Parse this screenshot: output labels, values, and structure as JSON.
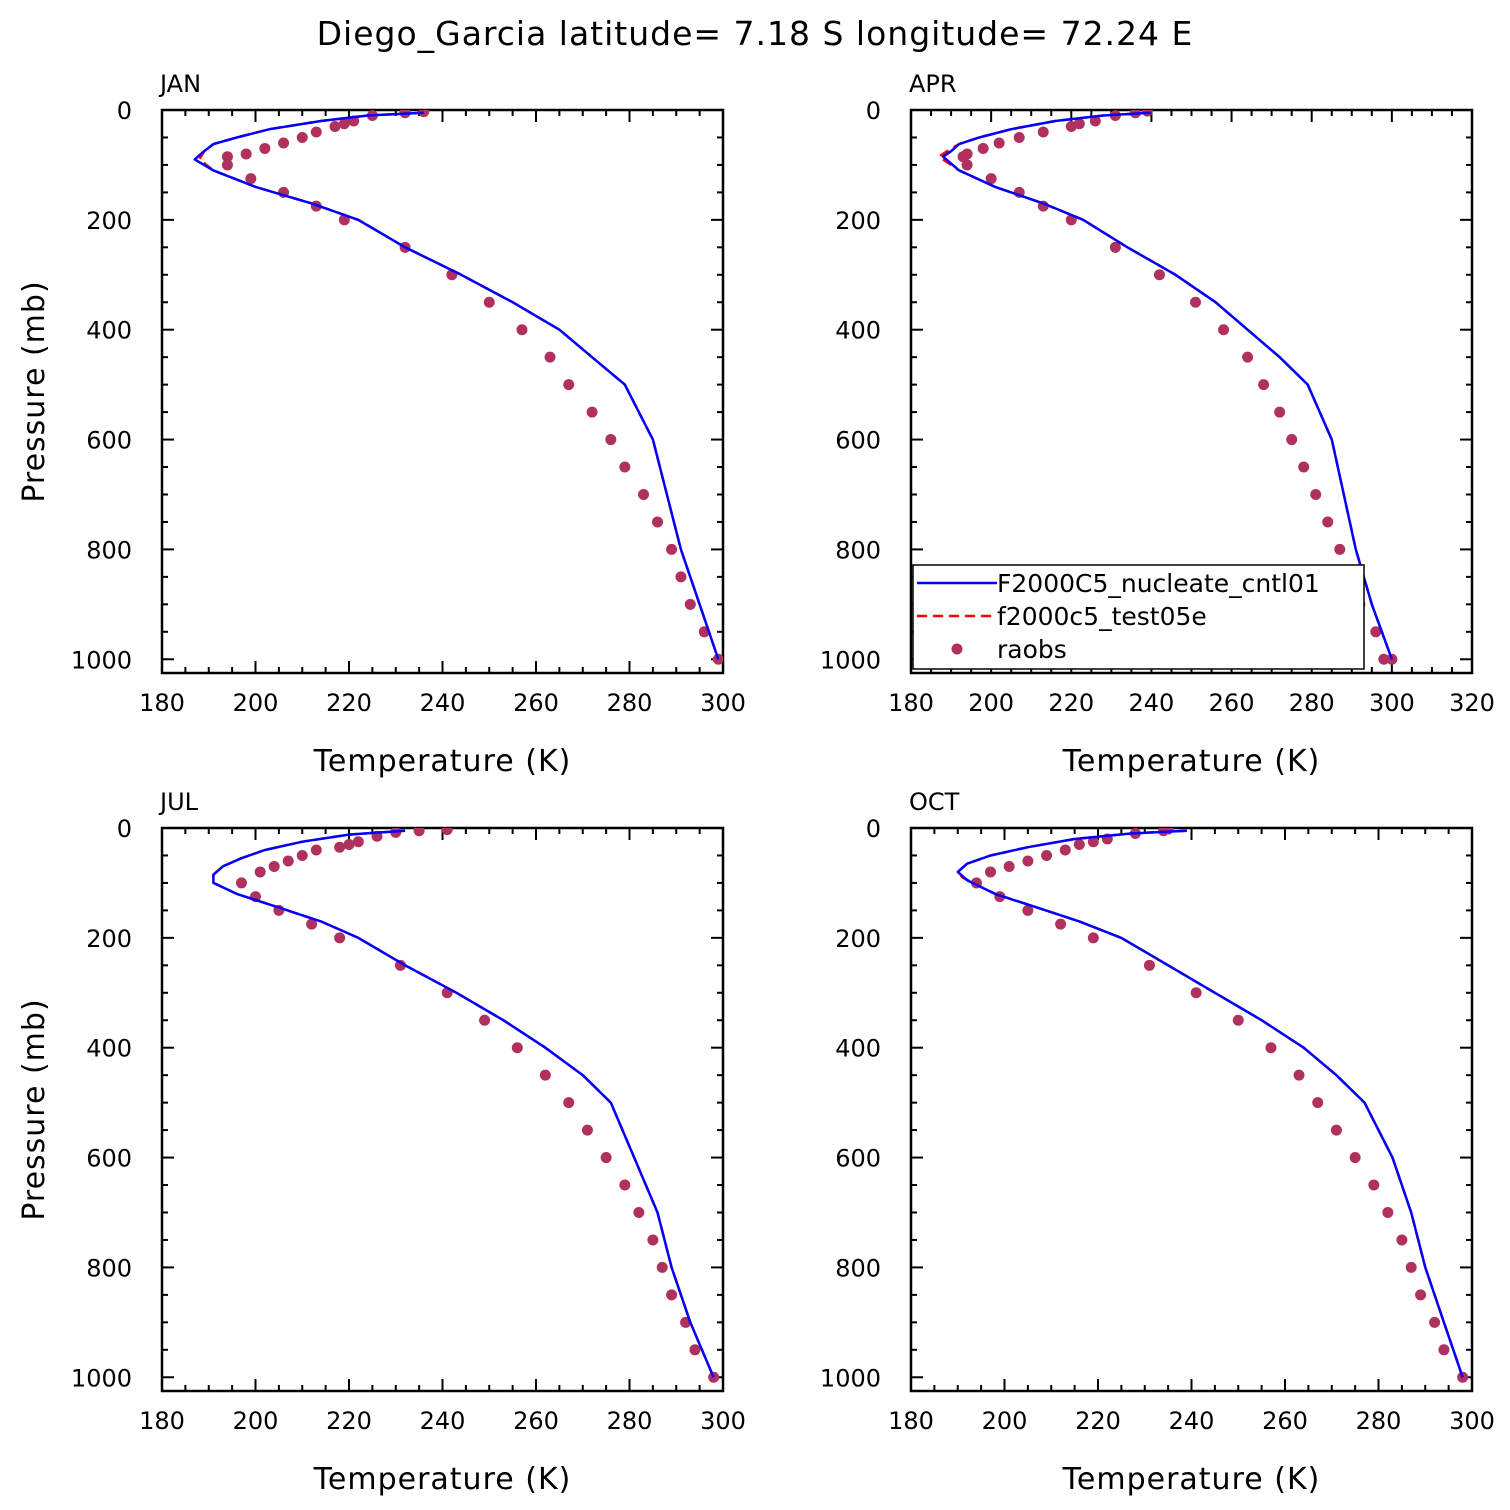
{
  "figure": {
    "title": "Diego_Garcia  latitude= 7.18 S longitude= 72.24 E"
  },
  "legend": {
    "placement": "lower-right of APR panel",
    "entries": [
      {
        "label": "F2000C5_nucleate_cntl01",
        "style": "solid-line",
        "color": "#0000ff"
      },
      {
        "label": "f2000c5_test05e",
        "style": "dashed-line",
        "color": "#ff0000"
      },
      {
        "label": "raobs",
        "style": "dots",
        "color": "#b03060"
      }
    ]
  },
  "chart_data": [
    {
      "type": "line",
      "title": "JAN",
      "xlabel": "Temperature (K)",
      "ylabel": "Pressure (mb)",
      "xlim": [
        180,
        300
      ],
      "ylim": [
        1025,
        0
      ],
      "xticks": [
        "180",
        "200",
        "220",
        "240",
        "260",
        "280",
        "300"
      ],
      "yticks": [
        "0",
        "200",
        "400",
        "600",
        "800",
        "1000"
      ],
      "series": [
        {
          "name": "F2000C5_nucleate_cntl01",
          "color": "#0000ff",
          "x": [
            236,
            224,
            214,
            203,
            196,
            191,
            189,
            187,
            191,
            200,
            212,
            222,
            232,
            244,
            255,
            265,
            272,
            279,
            285,
            288,
            291,
            295,
            299
          ],
          "y": [
            5,
            10,
            20,
            35,
            50,
            62,
            75,
            90,
            110,
            140,
            170,
            200,
            250,
            300,
            350,
            400,
            450,
            500,
            600,
            700,
            800,
            900,
            1000
          ]
        },
        {
          "name": "f2000c5_test05e",
          "color": "#ff0000",
          "x": [
            236,
            224,
            214,
            203,
            196,
            191,
            189,
            188,
            191,
            200,
            212,
            222,
            232,
            244,
            255,
            265,
            272,
            279,
            285,
            288,
            291,
            295,
            299
          ],
          "y": [
            5,
            10,
            20,
            35,
            50,
            62,
            75,
            90,
            110,
            140,
            170,
            200,
            250,
            300,
            350,
            400,
            450,
            500,
            600,
            700,
            800,
            900,
            1000
          ]
        },
        {
          "name": "raobs",
          "color": "#b03060",
          "x": [
            236,
            232,
            225,
            221,
            219,
            217,
            213,
            210,
            206,
            202,
            198,
            194,
            194,
            199,
            206,
            213,
            219,
            232,
            242,
            250,
            257,
            263,
            267,
            272,
            276,
            279,
            283,
            286,
            289,
            291,
            293,
            296,
            299
          ],
          "y": [
            3,
            5,
            10,
            20,
            25,
            30,
            40,
            50,
            60,
            70,
            80,
            85,
            100,
            125,
            150,
            175,
            200,
            250,
            300,
            350,
            400,
            450,
            500,
            550,
            600,
            650,
            700,
            750,
            800,
            850,
            900,
            950,
            1000
          ]
        }
      ]
    },
    {
      "type": "line",
      "title": "APR",
      "xlabel": "Temperature (K)",
      "ylabel": "",
      "xlim": [
        180,
        320
      ],
      "ylim": [
        1025,
        0
      ],
      "xticks": [
        "180",
        "200",
        "220",
        "240",
        "260",
        "280",
        "300",
        "320"
      ],
      "yticks": [
        "0",
        "200",
        "400",
        "600",
        "800",
        "1000"
      ],
      "series": [
        {
          "name": "F2000C5_nucleate_cntl01",
          "color": "#0000ff",
          "x": [
            240,
            228,
            216,
            205,
            197,
            192,
            190,
            188,
            192,
            201,
            213,
            223,
            234,
            246,
            256,
            264,
            272,
            279,
            285,
            288,
            291,
            295,
            300
          ],
          "y": [
            5,
            10,
            20,
            35,
            50,
            62,
            75,
            85,
            110,
            140,
            170,
            200,
            250,
            300,
            350,
            400,
            450,
            500,
            600,
            700,
            800,
            900,
            1000
          ]
        },
        {
          "name": "f2000c5_test05e",
          "color": "#ff0000",
          "x": [
            240,
            228,
            216,
            205,
            197,
            192,
            189,
            187,
            192,
            201,
            213,
            223,
            234,
            246,
            256,
            264,
            272,
            279,
            285,
            288,
            291,
            295,
            300
          ],
          "y": [
            5,
            10,
            20,
            35,
            50,
            62,
            75,
            85,
            110,
            140,
            170,
            200,
            250,
            300,
            350,
            400,
            450,
            500,
            600,
            700,
            800,
            900,
            1000
          ]
        },
        {
          "name": "raobs",
          "color": "#b03060",
          "x": [
            239,
            236,
            231,
            226,
            222,
            220,
            213,
            207,
            202,
            198,
            194,
            193,
            194,
            200,
            207,
            213,
            220,
            231,
            242,
            251,
            258,
            264,
            268,
            272,
            275,
            278,
            281,
            284,
            287,
            290,
            292,
            296,
            298,
            300
          ],
          "y": [
            2,
            5,
            10,
            20,
            25,
            30,
            40,
            50,
            60,
            70,
            80,
            85,
            100,
            125,
            150,
            175,
            200,
            250,
            300,
            350,
            400,
            450,
            500,
            550,
            600,
            650,
            700,
            750,
            800,
            850,
            900,
            950,
            1000,
            1000
          ]
        }
      ]
    },
    {
      "type": "line",
      "title": "JUL",
      "xlabel": "Temperature (K)",
      "ylabel": "Pressure (mb)",
      "xlim": [
        180,
        300
      ],
      "ylim": [
        1025,
        0
      ],
      "xticks": [
        "180",
        "200",
        "220",
        "240",
        "260",
        "280",
        "300"
      ],
      "yticks": [
        "0",
        "200",
        "400",
        "600",
        "800",
        "1000"
      ],
      "series": [
        {
          "name": "F2000C5_nucleate_cntl01",
          "color": "#0000ff",
          "x": [
            232,
            220,
            210,
            202,
            197,
            193,
            191,
            191,
            196,
            205,
            214,
            222,
            232,
            243,
            253,
            262,
            270,
            276,
            281,
            286,
            289,
            293,
            298
          ],
          "y": [
            5,
            12,
            25,
            40,
            55,
            70,
            85,
            100,
            120,
            145,
            170,
            200,
            250,
            300,
            350,
            400,
            450,
            500,
            600,
            700,
            800,
            900,
            1000
          ]
        },
        {
          "name": "f2000c5_test05e",
          "color": "#ff0000",
          "x": [
            232,
            220,
            210,
            202,
            197,
            193,
            191,
            191,
            196,
            205,
            214,
            222,
            232,
            243,
            253,
            262,
            270,
            276,
            281,
            286,
            289,
            293,
            298
          ],
          "y": [
            5,
            12,
            25,
            40,
            55,
            70,
            85,
            100,
            120,
            145,
            170,
            200,
            250,
            300,
            350,
            400,
            450,
            500,
            600,
            700,
            800,
            900,
            1000
          ]
        },
        {
          "name": "raobs",
          "color": "#b03060",
          "x": [
            241,
            235,
            230,
            226,
            222,
            220,
            218,
            213,
            210,
            207,
            204,
            201,
            197,
            200,
            205,
            212,
            218,
            231,
            241,
            249,
            256,
            262,
            267,
            271,
            275,
            279,
            282,
            285,
            287,
            289,
            292,
            294,
            298
          ],
          "y": [
            3,
            5,
            8,
            15,
            25,
            30,
            35,
            40,
            50,
            60,
            70,
            80,
            100,
            125,
            150,
            175,
            200,
            250,
            300,
            350,
            400,
            450,
            500,
            550,
            600,
            650,
            700,
            750,
            800,
            850,
            900,
            950,
            1000
          ]
        }
      ]
    },
    {
      "type": "line",
      "title": "OCT",
      "xlabel": "Temperature (K)",
      "ylabel": "",
      "xlim": [
        180,
        300
      ],
      "ylim": [
        1025,
        0
      ],
      "xticks": [
        "180",
        "200",
        "220",
        "240",
        "260",
        "280",
        "300"
      ],
      "yticks": [
        "0",
        "200",
        "400",
        "600",
        "800",
        "1000"
      ],
      "series": [
        {
          "name": "F2000C5_nucleate_cntl01",
          "color": "#0000ff",
          "x": [
            239,
            227,
            215,
            205,
            197,
            192,
            190,
            192,
            198,
            207,
            216,
            225,
            235,
            245,
            255,
            264,
            271,
            277,
            283,
            287,
            290,
            294,
            298
          ],
          "y": [
            5,
            10,
            20,
            35,
            50,
            65,
            80,
            95,
            120,
            145,
            170,
            200,
            250,
            300,
            350,
            400,
            450,
            500,
            600,
            700,
            800,
            900,
            1000
          ]
        },
        {
          "name": "f2000c5_test05e",
          "color": "#ff0000",
          "x": [
            239,
            227,
            215,
            205,
            197,
            192,
            190,
            191,
            198,
            207,
            216,
            225,
            235,
            245,
            255,
            264,
            271,
            277,
            283,
            287,
            290,
            294,
            298
          ],
          "y": [
            5,
            10,
            20,
            35,
            50,
            65,
            80,
            90,
            120,
            145,
            170,
            200,
            250,
            300,
            350,
            400,
            450,
            500,
            600,
            700,
            800,
            900,
            1000
          ]
        },
        {
          "name": "raobs",
          "color": "#b03060",
          "x": [
            235,
            234,
            228,
            222,
            219,
            216,
            213,
            209,
            205,
            201,
            197,
            194,
            199,
            205,
            212,
            219,
            231,
            241,
            250,
            257,
            263,
            267,
            271,
            275,
            279,
            282,
            285,
            287,
            289,
            292,
            294,
            298
          ],
          "y": [
            2,
            5,
            10,
            20,
            25,
            30,
            40,
            50,
            60,
            70,
            80,
            100,
            125,
            150,
            175,
            200,
            250,
            300,
            350,
            400,
            450,
            500,
            550,
            600,
            650,
            700,
            750,
            800,
            850,
            900,
            950,
            1000
          ]
        }
      ]
    }
  ]
}
